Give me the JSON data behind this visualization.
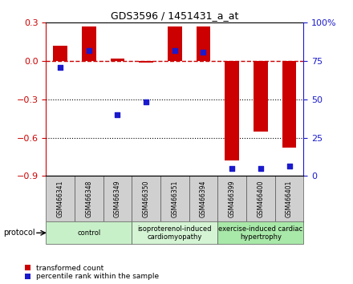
{
  "title": "GDS3596 / 1451431_a_at",
  "samples": [
    "GSM466341",
    "GSM466348",
    "GSM466349",
    "GSM466350",
    "GSM466351",
    "GSM466394",
    "GSM466399",
    "GSM466400",
    "GSM466401"
  ],
  "red_values": [
    0.12,
    0.27,
    0.02,
    -0.01,
    0.27,
    0.27,
    -0.78,
    -0.55,
    -0.68
  ],
  "blue_values": [
    -0.05,
    0.08,
    -0.42,
    -0.32,
    0.08,
    0.07,
    -0.84,
    -0.84,
    -0.82
  ],
  "groups": [
    {
      "label": "control",
      "start": 0,
      "end": 2,
      "color": "#c8f0c8"
    },
    {
      "label": "isoproterenol-induced\ncardiomyopathy",
      "start": 3,
      "end": 5,
      "color": "#d4f4d4"
    },
    {
      "label": "exercise-induced cardiac\nhypertrophy",
      "start": 6,
      "end": 8,
      "color": "#a8e8a8"
    }
  ],
  "ylim_left": [
    -0.9,
    0.3
  ],
  "ylim_right": [
    0,
    100
  ],
  "yticks_left": [
    0.3,
    0.0,
    -0.3,
    -0.6,
    -0.9
  ],
  "yticks_right": [
    100,
    75,
    50,
    25,
    0
  ],
  "red_color": "#cc0000",
  "blue_color": "#1a1acc",
  "bar_width": 0.5,
  "legend_red": "transformed count",
  "legend_blue": "percentile rank within the sample",
  "protocol_label": "protocol"
}
